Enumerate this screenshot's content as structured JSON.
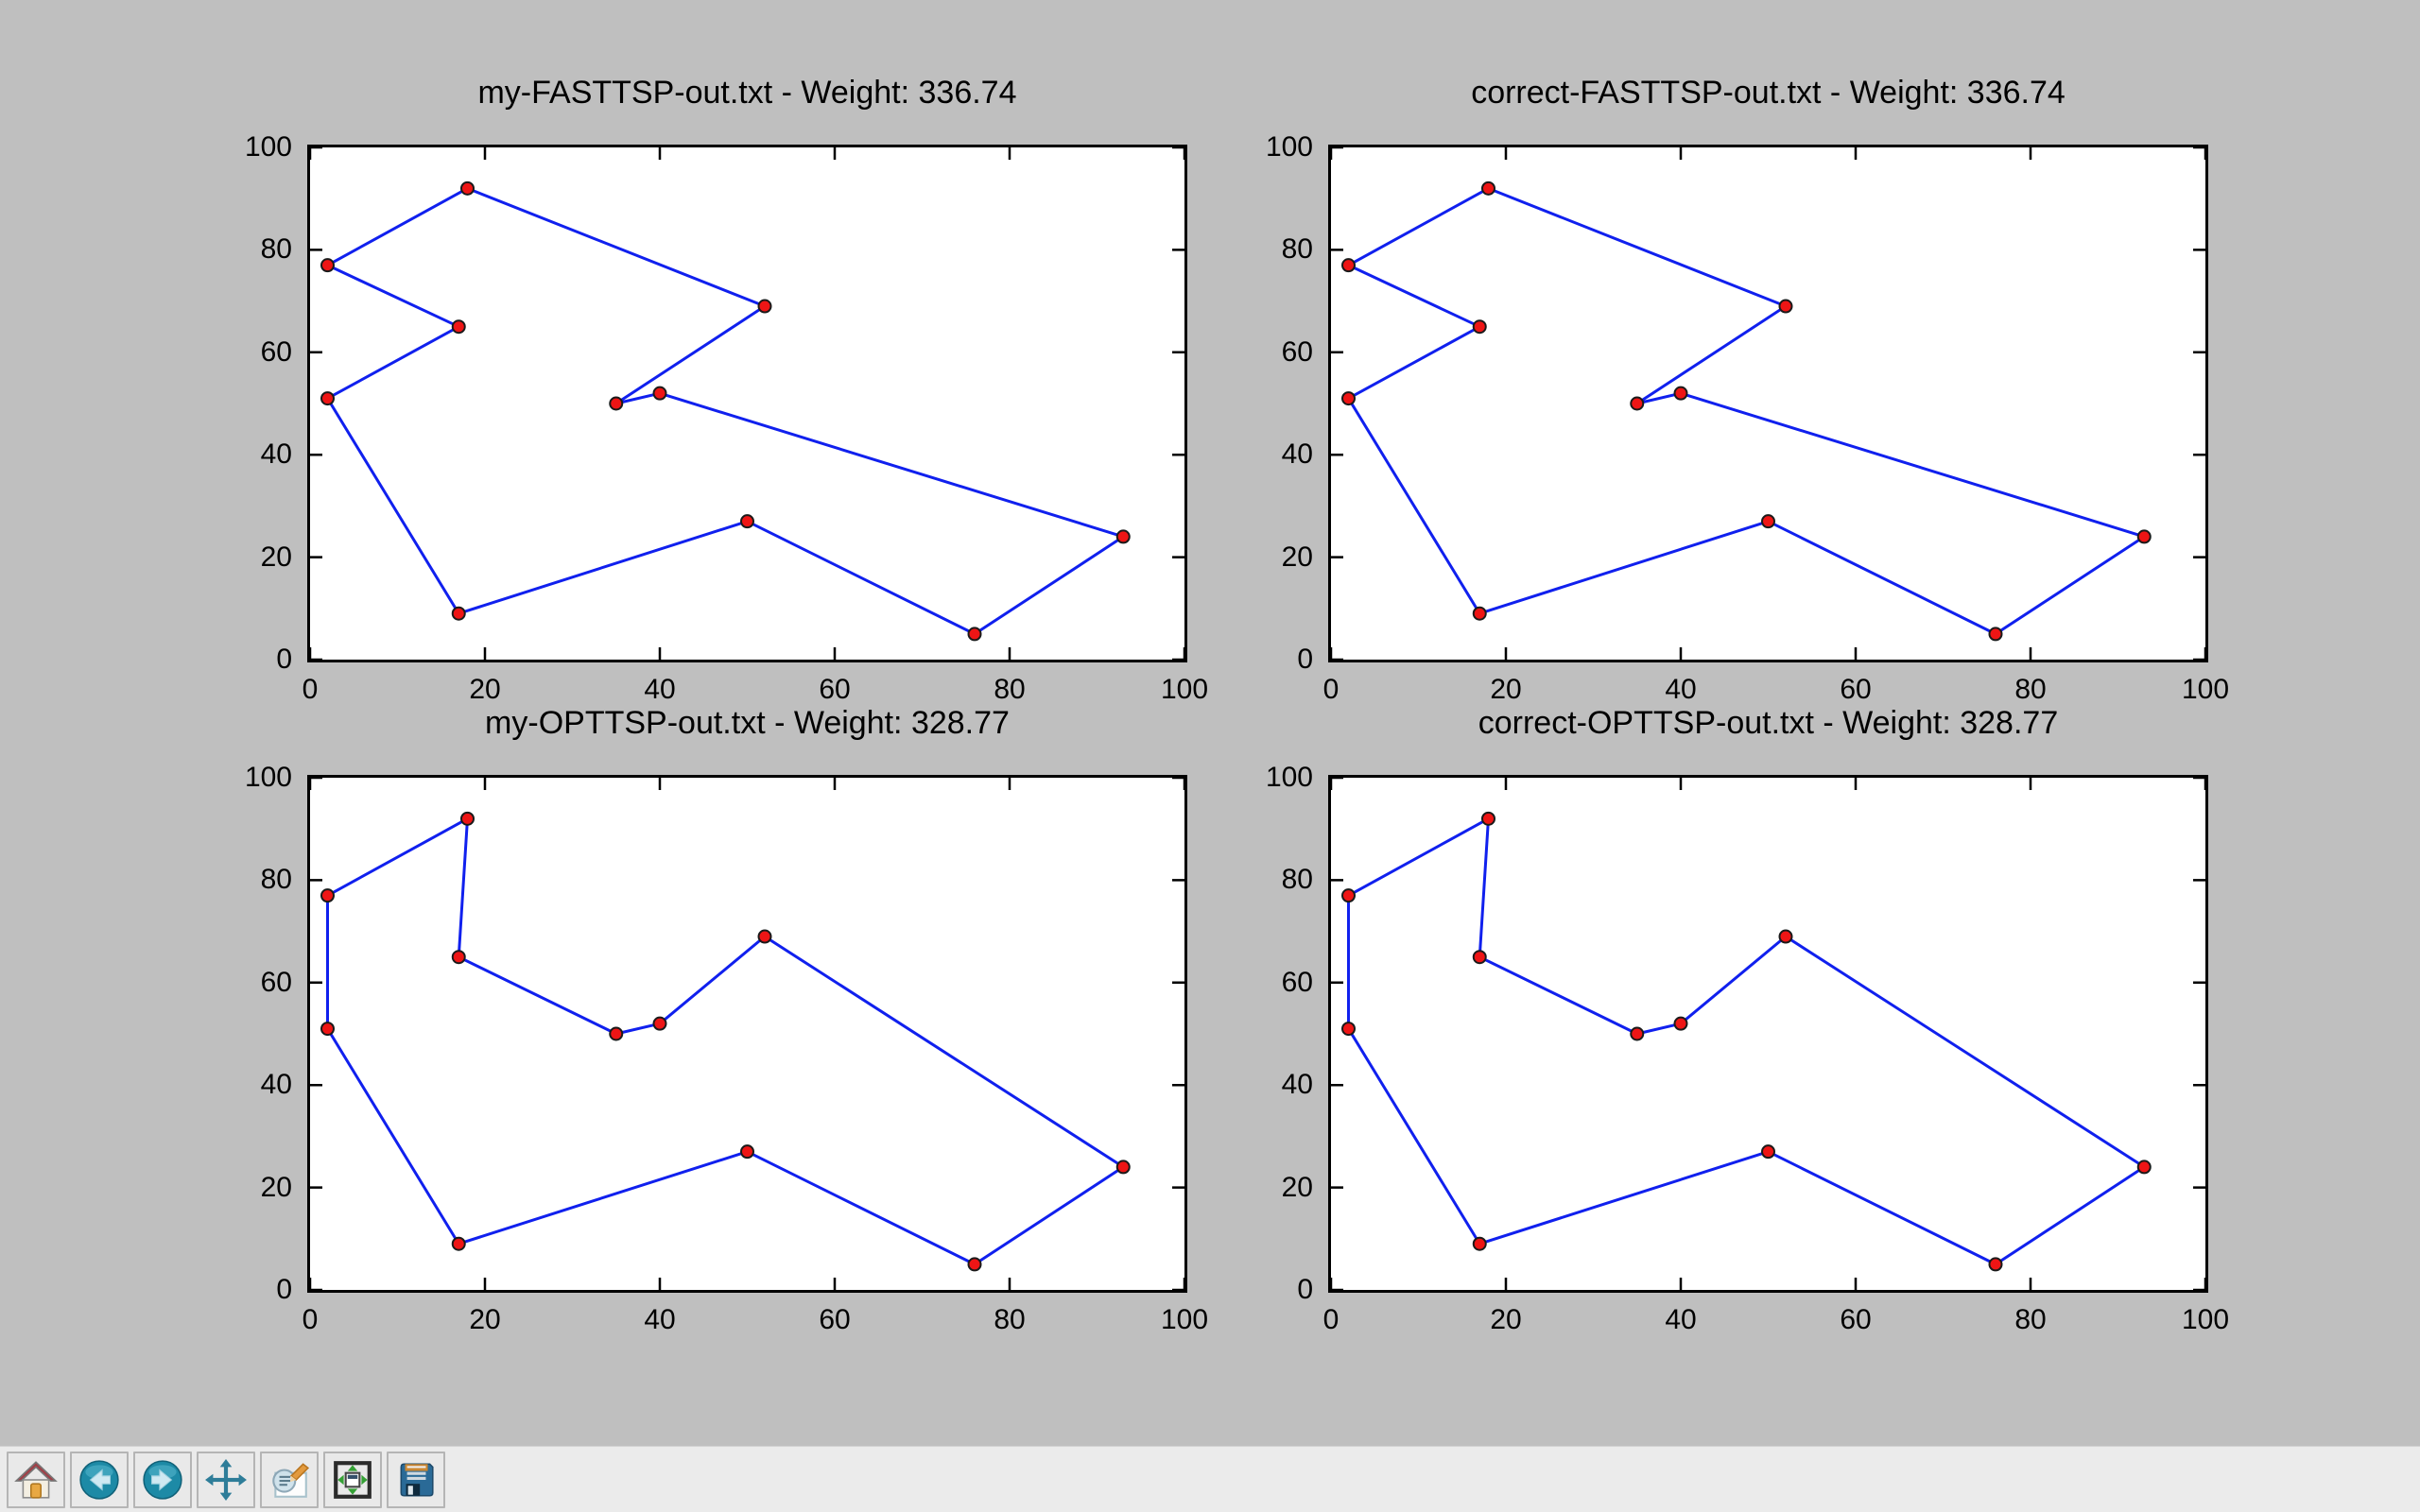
{
  "window": {
    "background_color": "#bfbfbf",
    "toolbar_background_color": "#ebebeb",
    "plot_background_color": "#ffffff"
  },
  "colors": {
    "tour_line": "#1020ee",
    "marker_fill": "#ee1515",
    "marker_edge": "#1a1a1a",
    "spine": "#000000",
    "title_text": "#000000"
  },
  "axes": {
    "xlim": [
      0,
      100
    ],
    "ylim": [
      0,
      100
    ],
    "tick_values": [
      0,
      20,
      40,
      60,
      80,
      100
    ],
    "tick_labels": [
      "0",
      "20",
      "40",
      "60",
      "80",
      "100"
    ]
  },
  "cities": [
    [
      2,
      77
    ],
    [
      18,
      92
    ],
    [
      17,
      65
    ],
    [
      2,
      51
    ],
    [
      35,
      50
    ],
    [
      40,
      52
    ],
    [
      52,
      69
    ],
    [
      50,
      27
    ],
    [
      93,
      24
    ],
    [
      76,
      5
    ],
    [
      17,
      9
    ]
  ],
  "tours": {
    "fast": [
      0,
      1,
      6,
      4,
      5,
      8,
      9,
      7,
      10,
      3,
      2
    ],
    "opt": [
      0,
      1,
      2,
      4,
      5,
      6,
      8,
      9,
      7,
      10,
      3
    ]
  },
  "plots": [
    {
      "title": "my-FASTTSP-out.txt - Weight: 336.74",
      "weight": "336.74",
      "tour": "fast"
    },
    {
      "title": "correct-FASTTSP-out.txt - Weight: 336.74",
      "weight": "336.74",
      "tour": "fast"
    },
    {
      "title": "my-OPTTSP-out.txt - Weight: 328.77",
      "weight": "328.77",
      "tour": "opt"
    },
    {
      "title": "correct-OPTTSP-out.txt - Weight: 328.77",
      "weight": "328.77",
      "tour": "opt"
    }
  ],
  "toolbar": {
    "buttons": [
      {
        "name": "home"
      },
      {
        "name": "back"
      },
      {
        "name": "forward"
      },
      {
        "name": "pan"
      },
      {
        "name": "zoom-to-rect"
      },
      {
        "name": "configure-subplots"
      },
      {
        "name": "save"
      }
    ]
  },
  "chart_data": [
    {
      "type": "line",
      "title": "my-FASTTSP-out.txt - Weight: 336.74",
      "xlim": [
        0,
        100
      ],
      "ylim": [
        0,
        100
      ],
      "xticks": [
        0,
        20,
        40,
        60,
        80,
        100
      ],
      "yticks": [
        0,
        20,
        40,
        60,
        80,
        100
      ],
      "grid": false,
      "legend": "none",
      "line_color": "blue",
      "marker": "red filled circle",
      "points_tour_order": [
        [
          2,
          77
        ],
        [
          18,
          92
        ],
        [
          52,
          69
        ],
        [
          35,
          50
        ],
        [
          40,
          52
        ],
        [
          93,
          24
        ],
        [
          76,
          5
        ],
        [
          50,
          27
        ],
        [
          17,
          9
        ],
        [
          2,
          51
        ],
        [
          17,
          65
        ],
        [
          2,
          77
        ]
      ]
    },
    {
      "type": "line",
      "title": "correct-FASTTSP-out.txt - Weight: 336.74",
      "xlim": [
        0,
        100
      ],
      "ylim": [
        0,
        100
      ],
      "xticks": [
        0,
        20,
        40,
        60,
        80,
        100
      ],
      "yticks": [
        0,
        20,
        40,
        60,
        80,
        100
      ],
      "grid": false,
      "legend": "none",
      "line_color": "blue",
      "marker": "red filled circle",
      "points_tour_order": [
        [
          2,
          77
        ],
        [
          18,
          92
        ],
        [
          52,
          69
        ],
        [
          35,
          50
        ],
        [
          40,
          52
        ],
        [
          93,
          24
        ],
        [
          76,
          5
        ],
        [
          50,
          27
        ],
        [
          17,
          9
        ],
        [
          2,
          51
        ],
        [
          17,
          65
        ],
        [
          2,
          77
        ]
      ]
    },
    {
      "type": "line",
      "title": "my-OPTTSP-out.txt - Weight: 328.77",
      "xlim": [
        0,
        100
      ],
      "ylim": [
        0,
        100
      ],
      "xticks": [
        0,
        20,
        40,
        60,
        80,
        100
      ],
      "yticks": [
        0,
        20,
        40,
        60,
        80,
        100
      ],
      "grid": false,
      "legend": "none",
      "line_color": "blue",
      "marker": "red filled circle",
      "points_tour_order": [
        [
          2,
          77
        ],
        [
          18,
          92
        ],
        [
          17,
          65
        ],
        [
          35,
          50
        ],
        [
          40,
          52
        ],
        [
          52,
          69
        ],
        [
          93,
          24
        ],
        [
          76,
          5
        ],
        [
          50,
          27
        ],
        [
          17,
          9
        ],
        [
          2,
          51
        ],
        [
          2,
          77
        ]
      ]
    },
    {
      "type": "line",
      "title": "correct-OPTTSP-out.txt - Weight: 328.77",
      "xlim": [
        0,
        100
      ],
      "ylim": [
        0,
        100
      ],
      "xticks": [
        0,
        20,
        40,
        60,
        80,
        100
      ],
      "yticks": [
        0,
        20,
        40,
        60,
        80,
        100
      ],
      "grid": false,
      "legend": "none",
      "line_color": "blue",
      "marker": "red filled circle",
      "points_tour_order": [
        [
          2,
          77
        ],
        [
          18,
          92
        ],
        [
          17,
          65
        ],
        [
          35,
          50
        ],
        [
          40,
          52
        ],
        [
          52,
          69
        ],
        [
          93,
          24
        ],
        [
          76,
          5
        ],
        [
          50,
          27
        ],
        [
          17,
          9
        ],
        [
          2,
          51
        ],
        [
          2,
          77
        ]
      ]
    }
  ]
}
